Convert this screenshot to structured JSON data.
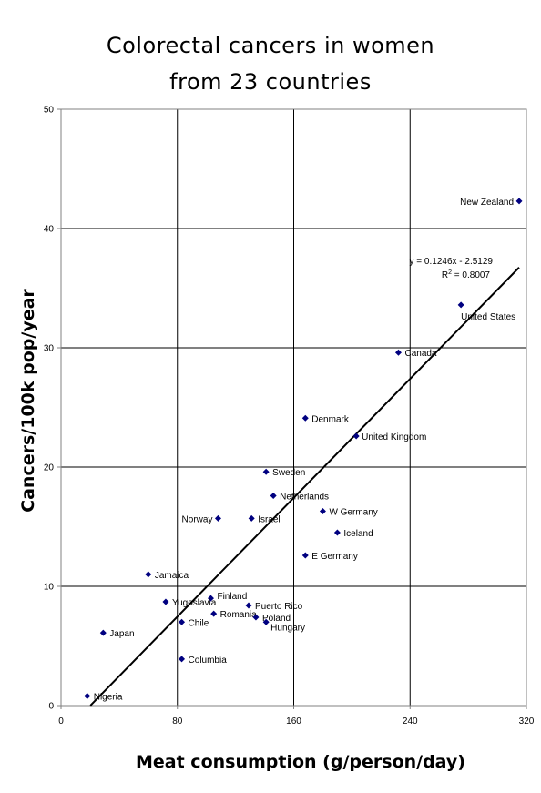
{
  "chart_data": {
    "type": "scatter",
    "title": [
      "Colorectal cancers in women",
      "from 23 countries"
    ],
    "xlabel": "Meat consumption (g/person/day)",
    "ylabel": "Cancers/100k pop/year",
    "xlim": [
      0,
      320
    ],
    "ylim": [
      0,
      50
    ],
    "x_ticks": [
      0,
      80,
      160,
      240,
      320
    ],
    "y_ticks": [
      0,
      10,
      20,
      30,
      40,
      50
    ],
    "grid": true,
    "marker_color": "#000080",
    "points": [
      {
        "label": "New Zealand",
        "x": 315,
        "y": 42.3
      },
      {
        "label": "United States",
        "x": 275,
        "y": 33.6
      },
      {
        "label": "Canada",
        "x": 232,
        "y": 29.6
      },
      {
        "label": "Denmark",
        "x": 168,
        "y": 24.1
      },
      {
        "label": "United Kingdom",
        "x": 203,
        "y": 22.6
      },
      {
        "label": "Sweden",
        "x": 141,
        "y": 19.6
      },
      {
        "label": "Netherlands",
        "x": 146,
        "y": 17.6
      },
      {
        "label": "W Germany",
        "x": 180,
        "y": 16.3
      },
      {
        "label": "Norway",
        "x": 108,
        "y": 15.7
      },
      {
        "label": "Israel",
        "x": 131,
        "y": 15.7
      },
      {
        "label": "Iceland",
        "x": 190,
        "y": 14.5
      },
      {
        "label": "E Germany",
        "x": 168,
        "y": 12.6
      },
      {
        "label": "Jamaica",
        "x": 60,
        "y": 11.0
      },
      {
        "label": "Finland",
        "x": 103,
        "y": 9.0
      },
      {
        "label": "Yugoslavia",
        "x": 72,
        "y": 8.7
      },
      {
        "label": "Puerto Rico",
        "x": 129,
        "y": 8.4
      },
      {
        "label": "Romania",
        "x": 105,
        "y": 7.7
      },
      {
        "label": "Poland",
        "x": 134,
        "y": 7.4
      },
      {
        "label": "Chile",
        "x": 83,
        "y": 7.0
      },
      {
        "label": "Hungary",
        "x": 141,
        "y": 7.0
      },
      {
        "label": "Japan",
        "x": 29,
        "y": 6.1
      },
      {
        "label": "Columbia",
        "x": 83,
        "y": 3.9
      },
      {
        "label": "Nigeria",
        "x": 18,
        "y": 0.8
      }
    ],
    "trendline": {
      "slope": 0.1246,
      "intercept": -2.5129,
      "x_range": [
        20.2,
        315
      ],
      "equation": "y = 0.1246x - 2.5129",
      "r2_prefix": "R",
      "r2_sup": "2",
      "r2_value": " = 0.8007"
    }
  }
}
